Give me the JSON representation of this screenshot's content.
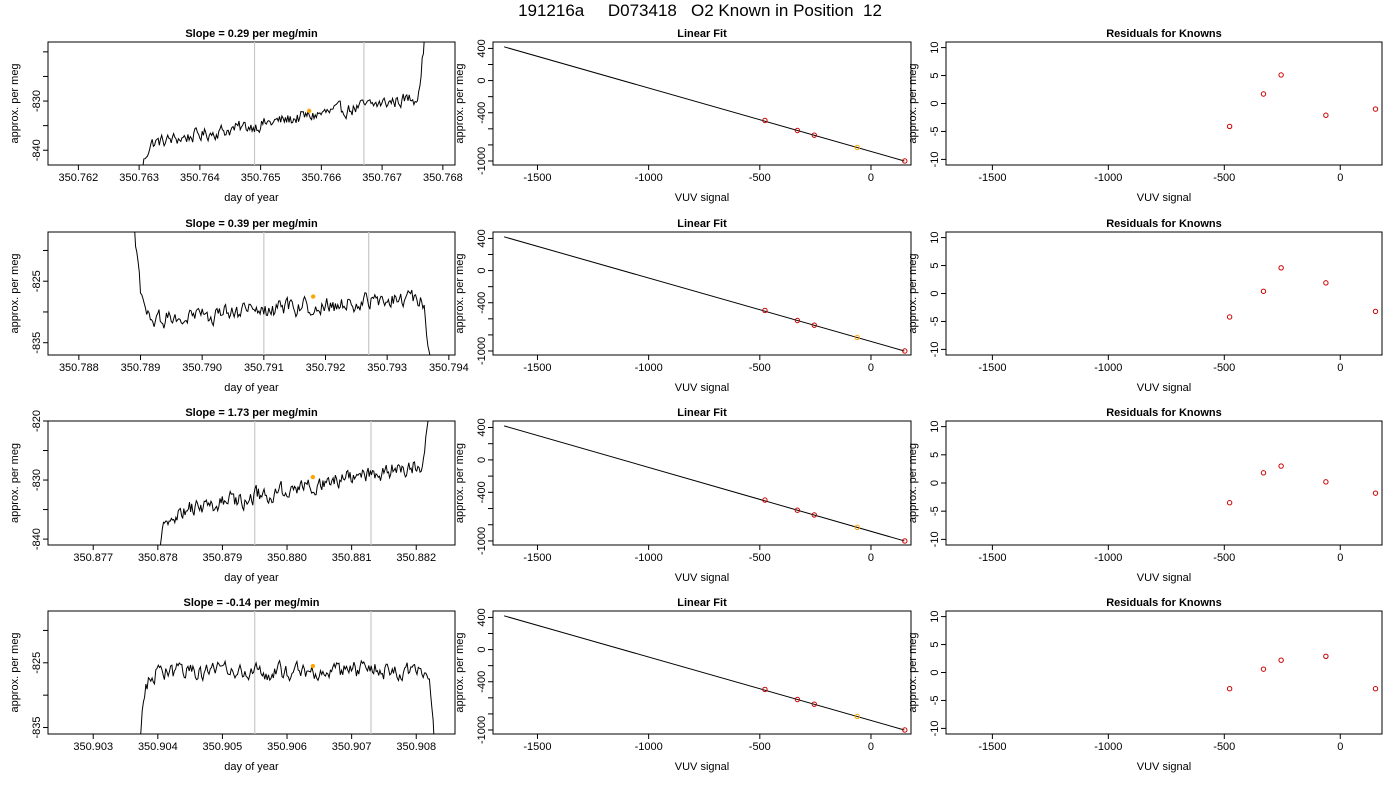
{
  "title": "191216a     D073418   O2 Known in Position  12",
  "colors": {
    "trace": "#000000",
    "marker": "#FFA500",
    "residual": "#CC0000",
    "guide": "#C8C8C8"
  },
  "chart_data": [
    {
      "type": "line",
      "title": "Slope =  0.29  per meg/min",
      "xlabel": "day of year",
      "ylabel": "approx. per meg",
      "xlim": [
        350.7615,
        350.7682
      ],
      "ylim": [
        -843,
        -818
      ],
      "xticks": [
        "350.762",
        "350.763",
        "350.764",
        "350.765",
        "350.766",
        "350.767",
        "350.768"
      ],
      "yticks": [
        "-840",
        "-835",
        "-830",
        "-825",
        "-820"
      ],
      "ytick_labels": [
        "-840",
        "",
        "-830",
        "",
        ""
      ],
      "vlines": [
        350.7649,
        350.7667
      ],
      "marker": {
        "x": 350.7658,
        "y": -832
      },
      "trace": {
        "x_start": 350.763,
        "x_end": 350.7677,
        "level_start": -839,
        "level_end": -829,
        "noise": 2.2,
        "rise_start": 8,
        "rise_end": 12
      }
    },
    {
      "type": "scatter",
      "title": "Linear Fit",
      "xlabel": "VUV signal",
      "ylabel": "approx. per meg",
      "xlim": [
        -1700,
        180
      ],
      "ylim": [
        -1050,
        480
      ],
      "xticks": [
        "-1500",
        "-1000",
        "-500",
        "0"
      ],
      "yticks": [
        "-1000",
        "-800",
        "-600",
        "-400",
        "-200",
        "0",
        "200",
        "400"
      ],
      "ytick_labels": [
        "-1000",
        "",
        "",
        "-400",
        "",
        "0",
        "",
        "400"
      ],
      "line": {
        "x": [
          -1650,
          150
        ],
        "y": [
          420,
          -1000
        ]
      },
      "points": [
        {
          "x": -477,
          "y": -496
        },
        {
          "x": -331,
          "y": -621
        },
        {
          "x": -255,
          "y": -679
        },
        {
          "x": -62,
          "y": -832
        },
        {
          "x": 152,
          "y": -1000
        }
      ],
      "highlight_index": 3
    },
    {
      "type": "scatter",
      "title": "Residuals for Knowns",
      "xlabel": "VUV signal",
      "ylabel": "approx. per meg",
      "xlim": [
        -1700,
        180
      ],
      "ylim": [
        -11,
        11
      ],
      "xticks": [
        "-1500",
        "-1000",
        "-500",
        "0"
      ],
      "yticks": [
        "-10",
        "-5",
        "0",
        "5",
        "10"
      ],
      "points": [
        {
          "x": -477,
          "y": -4.1
        },
        {
          "x": -331,
          "y": 1.7
        },
        {
          "x": -255,
          "y": 5.1
        },
        {
          "x": -62,
          "y": -2.1
        },
        {
          "x": 152,
          "y": -1.0
        }
      ]
    },
    {
      "type": "line",
      "title": "Slope =  0.39  per meg/min",
      "xlabel": "day of year",
      "ylabel": "approx. per meg",
      "xlim": [
        350.7875,
        350.7941
      ],
      "ylim": [
        -837,
        -817
      ],
      "xticks": [
        "350.788",
        "350.789",
        "350.790",
        "350.791",
        "350.792",
        "350.793",
        "350.794"
      ],
      "yticks": [
        "-835",
        "-830",
        "-825",
        "-820"
      ],
      "ytick_labels": [
        "-835",
        "",
        "-825",
        ""
      ],
      "vlines": [
        350.791,
        350.7927
      ],
      "marker": {
        "x": 350.7918,
        "y": -827.5
      },
      "trace": {
        "x_start": 350.7889,
        "x_end": 350.7937,
        "level_start": -831.5,
        "level_end": -827.5,
        "noise": 2.2,
        "rise_start": 15,
        "rise_end": 11
      }
    },
    {
      "type": "scatter",
      "title": "Linear Fit",
      "xlabel": "VUV signal",
      "ylabel": "approx. per meg",
      "xlim": [
        -1700,
        180
      ],
      "ylim": [
        -1050,
        480
      ],
      "xticks": [
        "-1500",
        "-1000",
        "-500",
        "0"
      ],
      "yticks": [
        "-1000",
        "-800",
        "-600",
        "-400",
        "-200",
        "0",
        "200",
        "400"
      ],
      "ytick_labels": [
        "-1000",
        "",
        "",
        "-400",
        "",
        "0",
        "",
        "400"
      ],
      "line": {
        "x": [
          -1650,
          150
        ],
        "y": [
          420,
          -1000
        ]
      },
      "points": [
        {
          "x": -477,
          "y": -496
        },
        {
          "x": -331,
          "y": -621
        },
        {
          "x": -255,
          "y": -679
        },
        {
          "x": -62,
          "y": -832
        },
        {
          "x": 152,
          "y": -1000
        }
      ],
      "highlight_index": 3
    },
    {
      "type": "scatter",
      "title": "Residuals for Knowns",
      "xlabel": "VUV signal",
      "ylabel": "approx. per meg",
      "xlim": [
        -1700,
        180
      ],
      "ylim": [
        -11,
        11
      ],
      "xticks": [
        "-1500",
        "-1000",
        "-500",
        "0"
      ],
      "yticks": [
        "-10",
        "-5",
        "0",
        "5",
        "10"
      ],
      "points": [
        {
          "x": -477,
          "y": -4.2
        },
        {
          "x": -331,
          "y": 0.4
        },
        {
          "x": -255,
          "y": 4.6
        },
        {
          "x": -62,
          "y": 1.9
        },
        {
          "x": 152,
          "y": -3.2
        }
      ]
    },
    {
      "type": "line",
      "title": "Slope =  1.73  per meg/min",
      "xlabel": "day of year",
      "ylabel": "approx. per meg",
      "xlim": [
        350.8763,
        350.8826
      ],
      "ylim": [
        -841,
        -820
      ],
      "xticks": [
        "350.877",
        "350.878",
        "350.879",
        "350.880",
        "350.881",
        "350.882"
      ],
      "yticks": [
        "-840",
        "-835",
        "-830",
        "-825",
        "-820"
      ],
      "ytick_labels": [
        "-840",
        "",
        "-830",
        "",
        "-820"
      ],
      "vlines": [
        350.8795,
        350.8813
      ],
      "marker": {
        "x": 350.8804,
        "y": -829.5
      },
      "trace": {
        "x_start": 350.878,
        "x_end": 350.8822,
        "level_start": -836,
        "level_end": -827,
        "noise": 2.3,
        "rise_start": 6,
        "rise_end": 9
      }
    },
    {
      "type": "scatter",
      "title": "Linear Fit",
      "xlabel": "VUV signal",
      "ylabel": "approx. per meg",
      "xlim": [
        -1700,
        180
      ],
      "ylim": [
        -1050,
        480
      ],
      "xticks": [
        "-1500",
        "-1000",
        "-500",
        "0"
      ],
      "yticks": [
        "-1000",
        "-800",
        "-600",
        "-400",
        "-200",
        "0",
        "200",
        "400"
      ],
      "ytick_labels": [
        "-1000",
        "",
        "",
        "-400",
        "",
        "0",
        "",
        "400"
      ],
      "line": {
        "x": [
          -1650,
          150
        ],
        "y": [
          420,
          -1000
        ]
      },
      "points": [
        {
          "x": -477,
          "y": -496
        },
        {
          "x": -331,
          "y": -621
        },
        {
          "x": -255,
          "y": -679
        },
        {
          "x": -62,
          "y": -832
        },
        {
          "x": 152,
          "y": -1000
        }
      ],
      "highlight_index": 3
    },
    {
      "type": "scatter",
      "title": "Residuals for Knowns",
      "xlabel": "VUV signal",
      "ylabel": "approx. per meg",
      "xlim": [
        -1700,
        180
      ],
      "ylim": [
        -11,
        11
      ],
      "xticks": [
        "-1500",
        "-1000",
        "-500",
        "0"
      ],
      "yticks": [
        "-10",
        "-5",
        "0",
        "5",
        "10"
      ],
      "points": [
        {
          "x": -477,
          "y": -3.5
        },
        {
          "x": -331,
          "y": 1.8
        },
        {
          "x": -255,
          "y": 3.0
        },
        {
          "x": -62,
          "y": 0.2
        },
        {
          "x": 152,
          "y": -1.8
        }
      ]
    },
    {
      "type": "line",
      "title": "Slope =  -0.14  per meg/min",
      "xlabel": "day of year",
      "ylabel": "approx. per meg",
      "xlim": [
        350.9023,
        350.9086
      ],
      "ylim": [
        -836,
        -817
      ],
      "xticks": [
        "350.903",
        "350.904",
        "350.905",
        "350.906",
        "350.907",
        "350.908"
      ],
      "yticks": [
        "-835",
        "-830",
        "-825",
        "-820"
      ],
      "ytick_labels": [
        "-835",
        "",
        "-825",
        ""
      ],
      "vlines": [
        350.9055,
        350.9073
      ],
      "marker": {
        "x": 350.9064,
        "y": -825.5
      },
      "trace": {
        "x_start": 350.9037,
        "x_end": 350.9083,
        "level_start": -826.5,
        "level_end": -826,
        "noise": 2.2,
        "rise_start": 12,
        "rise_end": 14
      }
    },
    {
      "type": "scatter",
      "title": "Linear Fit",
      "xlabel": "VUV signal",
      "ylabel": "approx. per meg",
      "xlim": [
        -1700,
        180
      ],
      "ylim": [
        -1050,
        480
      ],
      "xticks": [
        "-1500",
        "-1000",
        "-500",
        "0"
      ],
      "yticks": [
        "-1000",
        "-800",
        "-600",
        "-400",
        "-200",
        "0",
        "200",
        "400"
      ],
      "ytick_labels": [
        "-1000",
        "",
        "",
        "-400",
        "",
        "0",
        "",
        "400"
      ],
      "line": {
        "x": [
          -1650,
          150
        ],
        "y": [
          420,
          -1000
        ]
      },
      "points": [
        {
          "x": -477,
          "y": -496
        },
        {
          "x": -331,
          "y": -621
        },
        {
          "x": -255,
          "y": -679
        },
        {
          "x": -62,
          "y": -832
        },
        {
          "x": 152,
          "y": -1000
        }
      ],
      "highlight_index": 3
    },
    {
      "type": "scatter",
      "title": "Residuals for Knowns",
      "xlabel": "VUV signal",
      "ylabel": "approx. per meg",
      "xlim": [
        -1700,
        180
      ],
      "ylim": [
        -11,
        11
      ],
      "xticks": [
        "-1500",
        "-1000",
        "-500",
        "0"
      ],
      "yticks": [
        "-10",
        "-5",
        "0",
        "5",
        "10"
      ],
      "points": [
        {
          "x": -477,
          "y": -2.9
        },
        {
          "x": -331,
          "y": 0.6
        },
        {
          "x": -255,
          "y": 2.2
        },
        {
          "x": -62,
          "y": 2.9
        },
        {
          "x": 152,
          "y": -2.9
        }
      ]
    }
  ]
}
